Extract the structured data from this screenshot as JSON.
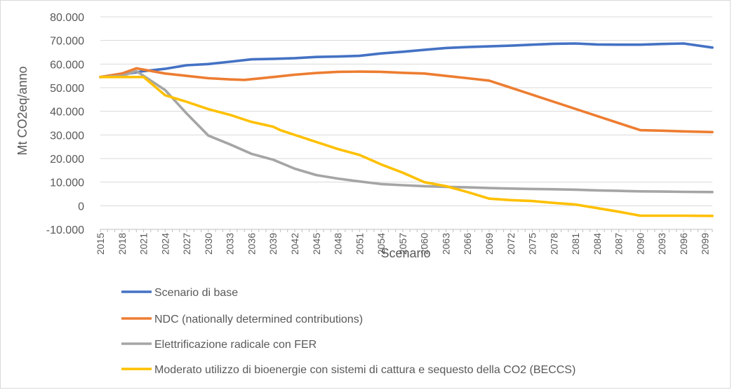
{
  "chart_data": {
    "type": "line",
    "title": "",
    "xlabel": "Scenario",
    "ylabel": "Mt CO2eq/anno",
    "ylim": [
      -10000,
      80000
    ],
    "y_ticks": [
      {
        "value": 80000,
        "label": "80.000"
      },
      {
        "value": 70000,
        "label": "70.000"
      },
      {
        "value": 60000,
        "label": "60.000"
      },
      {
        "value": 50000,
        "label": "50.000"
      },
      {
        "value": 40000,
        "label": "40.000"
      },
      {
        "value": 30000,
        "label": "30.000"
      },
      {
        "value": 20000,
        "label": "20.000"
      },
      {
        "value": 10000,
        "label": "10.000"
      },
      {
        "value": 0,
        "label": "0"
      },
      {
        "value": -10000,
        "label": "-10.000"
      }
    ],
    "x_range": [
      2015,
      2100
    ],
    "x_tick_labels": [
      "2015",
      "2018",
      "2021",
      "2024",
      "2027",
      "2030",
      "2033",
      "2036",
      "2039",
      "2042",
      "2045",
      "2048",
      "2051",
      "2054",
      "2057",
      "2060",
      "2063",
      "2066",
      "2069",
      "2072",
      "2075",
      "2078",
      "2081",
      "2084",
      "2087",
      "2090",
      "2093",
      "2096",
      "2099"
    ],
    "gridlines": true,
    "legend_position": "bottom",
    "series": [
      {
        "name": "Scenario di base",
        "color": "#4472C4",
        "points": [
          [
            2015,
            54500
          ],
          [
            2018,
            55500
          ],
          [
            2021,
            57000
          ],
          [
            2024,
            58000
          ],
          [
            2027,
            59500
          ],
          [
            2030,
            60000
          ],
          [
            2033,
            61000
          ],
          [
            2036,
            62000
          ],
          [
            2039,
            62200
          ],
          [
            2042,
            62500
          ],
          [
            2045,
            63000
          ],
          [
            2048,
            63200
          ],
          [
            2051,
            63500
          ],
          [
            2054,
            64500
          ],
          [
            2057,
            65200
          ],
          [
            2060,
            66000
          ],
          [
            2063,
            66800
          ],
          [
            2066,
            67200
          ],
          [
            2069,
            67500
          ],
          [
            2072,
            67800
          ],
          [
            2075,
            68200
          ],
          [
            2078,
            68600
          ],
          [
            2081,
            68700
          ],
          [
            2084,
            68300
          ],
          [
            2087,
            68200
          ],
          [
            2090,
            68200
          ],
          [
            2093,
            68500
          ],
          [
            2096,
            68700
          ],
          [
            2100,
            67000
          ]
        ]
      },
      {
        "name": "NDC (nationally determined contributions)",
        "color": "#ED7D31",
        "points": [
          [
            2015,
            54500
          ],
          [
            2018,
            56000
          ],
          [
            2020,
            58200
          ],
          [
            2024,
            56000
          ],
          [
            2027,
            55000
          ],
          [
            2030,
            54000
          ],
          [
            2033,
            53500
          ],
          [
            2035,
            53300
          ],
          [
            2039,
            54500
          ],
          [
            2042,
            55500
          ],
          [
            2045,
            56200
          ],
          [
            2048,
            56700
          ],
          [
            2051,
            56800
          ],
          [
            2054,
            56700
          ],
          [
            2057,
            56300
          ],
          [
            2060,
            56000
          ],
          [
            2063,
            55000
          ],
          [
            2066,
            54000
          ],
          [
            2069,
            53000
          ],
          [
            2072,
            50000
          ],
          [
            2075,
            47000
          ],
          [
            2078,
            44000
          ],
          [
            2081,
            41000
          ],
          [
            2084,
            38000
          ],
          [
            2087,
            35000
          ],
          [
            2090,
            32000
          ],
          [
            2093,
            31800
          ],
          [
            2096,
            31500
          ],
          [
            2100,
            31200
          ]
        ]
      },
      {
        "name": "Elettrificazione radicale con FER",
        "color": "#A5A5A5",
        "points": [
          [
            2015,
            54500
          ],
          [
            2018,
            55000
          ],
          [
            2020,
            57000
          ],
          [
            2024,
            49000
          ],
          [
            2027,
            39000
          ],
          [
            2030,
            29700
          ],
          [
            2033,
            26000
          ],
          [
            2036,
            22000
          ],
          [
            2039,
            19500
          ],
          [
            2042,
            15700
          ],
          [
            2045,
            13000
          ],
          [
            2048,
            11500
          ],
          [
            2051,
            10300
          ],
          [
            2054,
            9200
          ],
          [
            2057,
            8700
          ],
          [
            2060,
            8300
          ],
          [
            2063,
            8000
          ],
          [
            2066,
            7800
          ],
          [
            2069,
            7500
          ],
          [
            2072,
            7300
          ],
          [
            2075,
            7100
          ],
          [
            2078,
            7000
          ],
          [
            2081,
            6800
          ],
          [
            2084,
            6500
          ],
          [
            2087,
            6300
          ],
          [
            2090,
            6100
          ],
          [
            2093,
            6000
          ],
          [
            2096,
            5900
          ],
          [
            2100,
            5800
          ]
        ]
      },
      {
        "name": "Moderato utilizzo di bioenergie con sistemi di cattura e sequesto della CO2 (BECCS)",
        "color": "#FFC000",
        "points": [
          [
            2015,
            54500
          ],
          [
            2018,
            54500
          ],
          [
            2021,
            54500
          ],
          [
            2024,
            46800
          ],
          [
            2027,
            44000
          ],
          [
            2030,
            40900
          ],
          [
            2033,
            38500
          ],
          [
            2036,
            35500
          ],
          [
            2039,
            33500
          ],
          [
            2040,
            32000
          ],
          [
            2042,
            30000
          ],
          [
            2045,
            27000
          ],
          [
            2048,
            24000
          ],
          [
            2051,
            21500
          ],
          [
            2054,
            17500
          ],
          [
            2057,
            14000
          ],
          [
            2060,
            10000
          ],
          [
            2063,
            8300
          ],
          [
            2066,
            5800
          ],
          [
            2069,
            3000
          ],
          [
            2072,
            2400
          ],
          [
            2075,
            2000
          ],
          [
            2078,
            1200
          ],
          [
            2081,
            500
          ],
          [
            2084,
            -1000
          ],
          [
            2087,
            -2500
          ],
          [
            2090,
            -4200
          ],
          [
            2093,
            -4200
          ],
          [
            2096,
            -4200
          ],
          [
            2100,
            -4300
          ]
        ]
      }
    ]
  }
}
